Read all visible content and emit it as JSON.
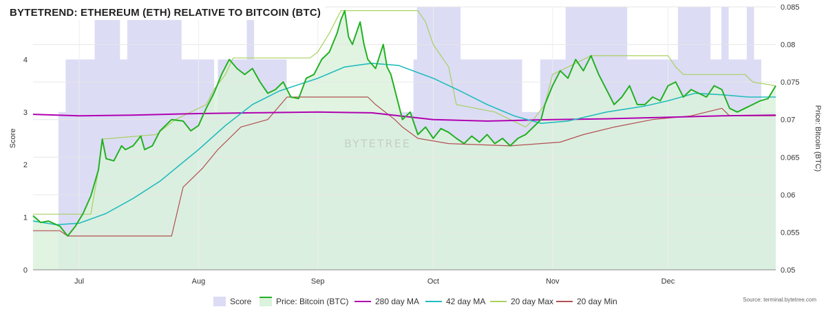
{
  "title": "BYTETREND: ETHEREUM (ETH) RELATIVE TO BITCOIN (BTC)",
  "source": "Source: terminal.bytetree.com",
  "watermark": "BYTETREE",
  "colors": {
    "score": "#dcdcf5",
    "price_fill": "#dbf2dc",
    "price_line": "#22b022",
    "ma280": "#b000b0",
    "ma42": "#22bcbc",
    "max20": "#a8d060",
    "min20": "#b05050"
  },
  "legend": [
    {
      "label": "Score",
      "key": "score",
      "kind": "box"
    },
    {
      "label": "Price: Bitcoin (BTC)",
      "key": "price",
      "kind": "box"
    },
    {
      "label": "280 day MA",
      "key": "ma280",
      "kind": "line"
    },
    {
      "label": "42 day MA",
      "key": "ma42",
      "kind": "line"
    },
    {
      "label": "20 day Max",
      "key": "max20",
      "kind": "line"
    },
    {
      "label": "20 day Min",
      "key": "min20",
      "kind": "line"
    }
  ],
  "chart_data": {
    "type": "line",
    "x_range": [
      "2021-06-19",
      "2021-12-29"
    ],
    "x_ticks": [
      "Jul",
      "Aug",
      "Sep",
      "Oct",
      "Nov",
      "Dec"
    ],
    "x_tick_dates": [
      "2021-07-01",
      "2021-08-01",
      "2021-09-01",
      "2021-10-01",
      "2021-11-01",
      "2021-12-01"
    ],
    "left_axis": {
      "label": "Score",
      "range": [
        0,
        5
      ],
      "ticks": [
        "0",
        "1",
        "2",
        "3",
        "4"
      ]
    },
    "right_axis": {
      "label": "Price: Bitcoin (BTC)",
      "range": [
        0.05,
        0.085
      ],
      "ticks": [
        "0.05",
        "0.055",
        "0.06",
        "0.065",
        "0.07",
        "0.075",
        "0.08",
        "0.085"
      ]
    },
    "score": {
      "name": "Score",
      "axis": "left",
      "values": [
        0,
        0,
        0,
        0,
        0,
        0,
        0,
        3,
        3,
        4,
        4,
        4,
        4,
        4,
        4,
        4,
        4,
        5,
        5,
        5,
        5,
        5,
        5,
        5,
        4,
        4,
        5,
        5,
        5,
        5,
        5,
        5,
        5,
        5,
        5,
        5,
        5,
        5,
        5,
        5,
        5,
        4,
        4,
        4,
        4,
        4,
        4,
        4,
        4,
        4,
        3,
        4,
        4,
        4,
        4,
        4,
        4,
        4,
        4,
        5,
        5,
        4,
        4,
        4,
        4,
        4,
        4,
        4,
        4,
        4,
        3,
        3,
        3,
        3,
        3,
        3,
        3,
        3,
        3,
        3,
        3,
        3,
        3,
        3,
        3,
        3,
        3,
        3,
        3,
        3,
        3,
        3,
        3,
        3,
        3,
        3,
        3,
        3,
        3,
        3,
        3,
        3,
        3,
        3,
        3,
        4,
        5,
        5,
        5,
        5,
        5,
        5,
        5,
        5,
        5,
        5,
        5,
        5,
        4,
        4,
        4,
        4,
        4,
        4,
        4,
        4,
        4,
        4,
        4,
        4,
        4,
        4,
        4,
        4,
        4,
        3,
        3,
        3,
        3,
        3,
        4,
        4,
        4,
        4,
        4,
        4,
        4,
        5,
        5,
        5,
        5,
        5,
        5,
        5,
        5,
        5,
        5,
        5,
        5,
        5,
        5,
        5,
        5,
        5,
        4,
        4,
        4,
        4,
        4,
        4,
        4,
        4,
        4,
        4,
        4,
        4,
        4,
        4,
        5,
        5,
        5,
        5,
        5,
        5,
        5,
        5,
        5,
        4,
        4,
        4,
        5,
        5,
        4,
        4,
        4,
        4,
        4,
        5,
        5,
        4,
        4,
        3,
        3,
        3,
        3
      ]
    },
    "series": [
      {
        "name": "Price: Bitcoin (BTC)",
        "axis": "right",
        "points": [
          [
            "2021-06-19",
            0.0572
          ],
          [
            "2021-06-21",
            0.0563
          ],
          [
            "2021-06-23",
            0.0565
          ],
          [
            "2021-06-26",
            0.0558
          ],
          [
            "2021-06-28",
            0.0545
          ],
          [
            "2021-06-30",
            0.0558
          ],
          [
            "2021-07-02",
            0.0575
          ],
          [
            "2021-07-04",
            0.0598
          ],
          [
            "2021-07-06",
            0.0633
          ],
          [
            "2021-07-07",
            0.0674
          ],
          [
            "2021-07-08",
            0.0648
          ],
          [
            "2021-07-10",
            0.0645
          ],
          [
            "2021-07-12",
            0.0665
          ],
          [
            "2021-07-13",
            0.066
          ],
          [
            "2021-07-15",
            0.0665
          ],
          [
            "2021-07-17",
            0.0678
          ],
          [
            "2021-07-18",
            0.066
          ],
          [
            "2021-07-20",
            0.0665
          ],
          [
            "2021-07-22",
            0.0685
          ],
          [
            "2021-07-25",
            0.07
          ],
          [
            "2021-07-28",
            0.0698
          ],
          [
            "2021-07-30",
            0.0685
          ],
          [
            "2021-08-01",
            0.0692
          ],
          [
            "2021-08-03",
            0.0715
          ],
          [
            "2021-08-05",
            0.0735
          ],
          [
            "2021-08-07",
            0.076
          ],
          [
            "2021-08-09",
            0.078
          ],
          [
            "2021-08-11",
            0.0768
          ],
          [
            "2021-08-13",
            0.076
          ],
          [
            "2021-08-15",
            0.0768
          ],
          [
            "2021-08-17",
            0.075
          ],
          [
            "2021-08-19",
            0.0735
          ],
          [
            "2021-08-21",
            0.074
          ],
          [
            "2021-08-23",
            0.075
          ],
          [
            "2021-08-25",
            0.073
          ],
          [
            "2021-08-27",
            0.0728
          ],
          [
            "2021-08-29",
            0.0755
          ],
          [
            "2021-08-31",
            0.076
          ],
          [
            "2021-09-02",
            0.078
          ],
          [
            "2021-09-04",
            0.079
          ],
          [
            "2021-09-06",
            0.0815
          ],
          [
            "2021-09-07",
            0.0833
          ],
          [
            "2021-09-08",
            0.0845
          ],
          [
            "2021-09-09",
            0.081
          ],
          [
            "2021-09-10",
            0.08
          ],
          [
            "2021-09-12",
            0.083
          ],
          [
            "2021-09-13",
            0.08
          ],
          [
            "2021-09-14",
            0.078
          ],
          [
            "2021-09-16",
            0.0768
          ],
          [
            "2021-09-18",
            0.08
          ],
          [
            "2021-09-19",
            0.077
          ],
          [
            "2021-09-20",
            0.076
          ],
          [
            "2021-09-21",
            0.074
          ],
          [
            "2021-09-23",
            0.07
          ],
          [
            "2021-09-25",
            0.071
          ],
          [
            "2021-09-27",
            0.068
          ],
          [
            "2021-09-29",
            0.069
          ],
          [
            "2021-10-01",
            0.0675
          ],
          [
            "2021-10-03",
            0.0688
          ],
          [
            "2021-10-05",
            0.0683
          ],
          [
            "2021-10-07",
            0.0675
          ],
          [
            "2021-10-09",
            0.0668
          ],
          [
            "2021-10-11",
            0.0678
          ],
          [
            "2021-10-13",
            0.067
          ],
          [
            "2021-10-15",
            0.068
          ],
          [
            "2021-10-17",
            0.0668
          ],
          [
            "2021-10-19",
            0.0675
          ],
          [
            "2021-10-21",
            0.0665
          ],
          [
            "2021-10-23",
            0.0675
          ],
          [
            "2021-10-25",
            0.068
          ],
          [
            "2021-10-27",
            0.069
          ],
          [
            "2021-10-29",
            0.07
          ],
          [
            "2021-10-30",
            0.072
          ],
          [
            "2021-11-01",
            0.0745
          ],
          [
            "2021-11-03",
            0.0765
          ],
          [
            "2021-11-05",
            0.0755
          ],
          [
            "2021-11-07",
            0.078
          ],
          [
            "2021-11-09",
            0.0765
          ],
          [
            "2021-11-11",
            0.0785
          ],
          [
            "2021-11-13",
            0.076
          ],
          [
            "2021-11-15",
            0.074
          ],
          [
            "2021-11-17",
            0.072
          ],
          [
            "2021-11-19",
            0.073
          ],
          [
            "2021-11-21",
            0.0745
          ],
          [
            "2021-11-23",
            0.072
          ],
          [
            "2021-11-25",
            0.072
          ],
          [
            "2021-11-27",
            0.073
          ],
          [
            "2021-11-29",
            0.0725
          ],
          [
            "2021-12-01",
            0.0745
          ],
          [
            "2021-12-03",
            0.075
          ],
          [
            "2021-12-05",
            0.073
          ],
          [
            "2021-12-07",
            0.074
          ],
          [
            "2021-12-09",
            0.0735
          ],
          [
            "2021-12-11",
            0.073
          ],
          [
            "2021-12-13",
            0.0745
          ],
          [
            "2021-12-15",
            0.074
          ],
          [
            "2021-12-17",
            0.0715
          ],
          [
            "2021-12-19",
            0.071
          ],
          [
            "2021-12-21",
            0.0715
          ],
          [
            "2021-12-23",
            0.072
          ],
          [
            "2021-12-25",
            0.0725
          ],
          [
            "2021-12-27",
            0.0728
          ],
          [
            "2021-12-29",
            0.0745
          ]
        ]
      },
      {
        "name": "280 day MA",
        "axis": "right",
        "points": [
          [
            "2021-06-19",
            0.0707
          ],
          [
            "2021-07-01",
            0.0705
          ],
          [
            "2021-07-15",
            0.0706
          ],
          [
            "2021-08-01",
            0.0708
          ],
          [
            "2021-08-15",
            0.0709
          ],
          [
            "2021-09-01",
            0.071
          ],
          [
            "2021-09-15",
            0.0709
          ],
          [
            "2021-10-01",
            0.07
          ],
          [
            "2021-10-15",
            0.0698
          ],
          [
            "2021-11-01",
            0.07
          ],
          [
            "2021-11-15",
            0.0701
          ],
          [
            "2021-12-01",
            0.0703
          ],
          [
            "2021-12-15",
            0.0705
          ],
          [
            "2021-12-29",
            0.0706
          ]
        ]
      },
      {
        "name": "42 day MA",
        "axis": "right",
        "points": [
          [
            "2021-06-19",
            0.0565
          ],
          [
            "2021-06-25",
            0.056
          ],
          [
            "2021-07-01",
            0.0562
          ],
          [
            "2021-07-08",
            0.0575
          ],
          [
            "2021-07-15",
            0.0595
          ],
          [
            "2021-07-22",
            0.0618
          ],
          [
            "2021-08-01",
            0.066
          ],
          [
            "2021-08-08",
            0.0692
          ],
          [
            "2021-08-15",
            0.072
          ],
          [
            "2021-08-22",
            0.0738
          ],
          [
            "2021-09-01",
            0.0755
          ],
          [
            "2021-09-08",
            0.077
          ],
          [
            "2021-09-15",
            0.0775
          ],
          [
            "2021-09-22",
            0.0772
          ],
          [
            "2021-10-01",
            0.0755
          ],
          [
            "2021-10-08",
            0.0738
          ],
          [
            "2021-10-15",
            0.072
          ],
          [
            "2021-10-22",
            0.0705
          ],
          [
            "2021-10-29",
            0.0695
          ],
          [
            "2021-11-05",
            0.0698
          ],
          [
            "2021-11-15",
            0.071
          ],
          [
            "2021-11-25",
            0.0718
          ],
          [
            "2021-12-01",
            0.0725
          ],
          [
            "2021-12-08",
            0.0735
          ],
          [
            "2021-12-15",
            0.0733
          ],
          [
            "2021-12-22",
            0.073
          ],
          [
            "2021-12-29",
            0.073
          ]
        ]
      },
      {
        "name": "20 day Max",
        "axis": "right",
        "points": [
          [
            "2021-06-19",
            0.0574
          ],
          [
            "2021-07-04",
            0.0574
          ],
          [
            "2021-07-06",
            0.0633
          ],
          [
            "2021-07-07",
            0.0674
          ],
          [
            "2021-07-21",
            0.068
          ],
          [
            "2021-07-26",
            0.07
          ],
          [
            "2021-08-03",
            0.072
          ],
          [
            "2021-08-05",
            0.074
          ],
          [
            "2021-08-08",
            0.076
          ],
          [
            "2021-08-10",
            0.0782
          ],
          [
            "2021-08-30",
            0.0782
          ],
          [
            "2021-09-01",
            0.079
          ],
          [
            "2021-09-04",
            0.0815
          ],
          [
            "2021-09-07",
            0.0845
          ],
          [
            "2021-09-27",
            0.0845
          ],
          [
            "2021-09-29",
            0.083
          ],
          [
            "2021-10-01",
            0.08
          ],
          [
            "2021-10-05",
            0.077
          ],
          [
            "2021-10-07",
            0.072
          ],
          [
            "2021-10-17",
            0.071
          ],
          [
            "2021-10-21",
            0.07
          ],
          [
            "2021-10-25",
            0.069
          ],
          [
            "2021-10-27",
            0.07
          ],
          [
            "2021-10-30",
            0.072
          ],
          [
            "2021-11-01",
            0.076
          ],
          [
            "2021-11-05",
            0.077
          ],
          [
            "2021-11-11",
            0.0785
          ],
          [
            "2021-12-01",
            0.0785
          ],
          [
            "2021-12-03",
            0.077
          ],
          [
            "2021-12-05",
            0.076
          ],
          [
            "2021-12-21",
            0.076
          ],
          [
            "2021-12-23",
            0.075
          ],
          [
            "2021-12-29",
            0.0745
          ]
        ]
      },
      {
        "name": "20 day Min",
        "axis": "right",
        "points": [
          [
            "2021-06-19",
            0.0552
          ],
          [
            "2021-06-26",
            0.0552
          ],
          [
            "2021-06-28",
            0.0545
          ],
          [
            "2021-07-25",
            0.0545
          ],
          [
            "2021-07-28",
            0.061
          ],
          [
            "2021-08-02",
            0.0635
          ],
          [
            "2021-08-06",
            0.066
          ],
          [
            "2021-08-12",
            0.069
          ],
          [
            "2021-08-19",
            0.07
          ],
          [
            "2021-08-24",
            0.073
          ],
          [
            "2021-09-14",
            0.073
          ],
          [
            "2021-09-16",
            0.072
          ],
          [
            "2021-09-21",
            0.07
          ],
          [
            "2021-09-23",
            0.069
          ],
          [
            "2021-09-27",
            0.0675
          ],
          [
            "2021-10-05",
            0.0668
          ],
          [
            "2021-10-21",
            0.0665
          ],
          [
            "2021-11-03",
            0.067
          ],
          [
            "2021-11-09",
            0.068
          ],
          [
            "2021-11-17",
            0.069
          ],
          [
            "2021-11-27",
            0.07
          ],
          [
            "2021-12-07",
            0.0705
          ],
          [
            "2021-12-15",
            0.0715
          ],
          [
            "2021-12-17",
            0.0705
          ],
          [
            "2021-12-29",
            0.0705
          ]
        ]
      }
    ]
  }
}
